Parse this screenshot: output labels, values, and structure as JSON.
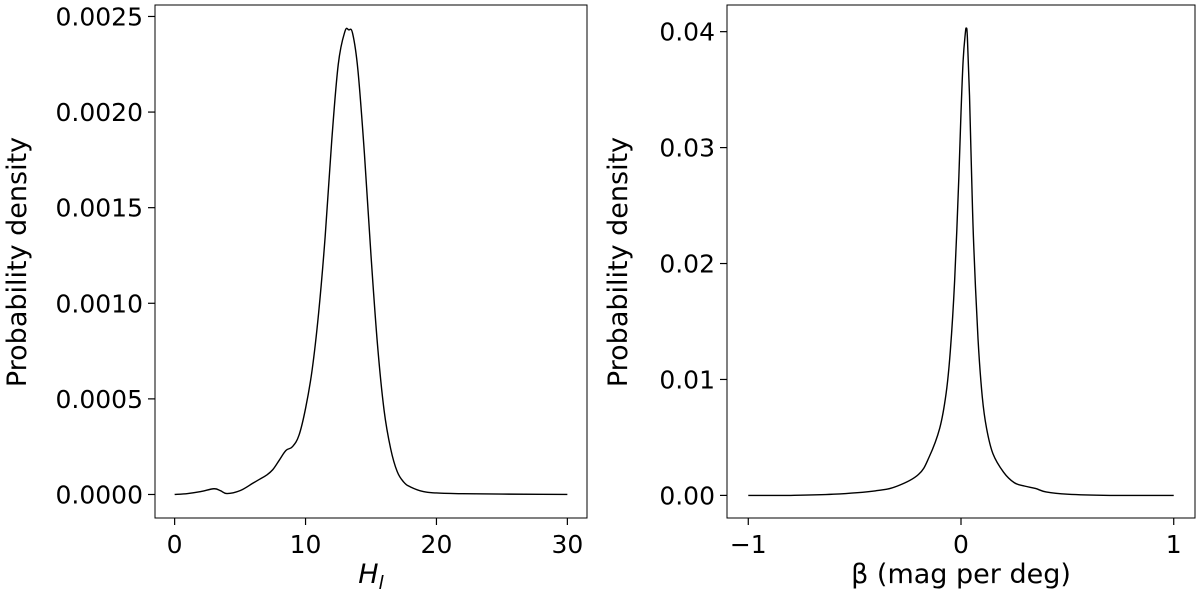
{
  "chart_data": [
    {
      "type": "line",
      "title": "",
      "xlabel": "H",
      "xlabel_subscript": "l",
      "ylabel": "Probability density",
      "xlim": [
        -1.5,
        31.5
      ],
      "ylim": [
        -0.000123,
        0.00256
      ],
      "xticks": [
        0,
        10,
        20,
        30
      ],
      "xtick_labels": [
        "0",
        "10",
        "20",
        "30"
      ],
      "yticks": [
        0.0,
        0.0005,
        0.001,
        0.0015,
        0.002,
        0.0025
      ],
      "ytick_labels": [
        "0.0000",
        "0.0005",
        "0.0010",
        "0.0015",
        "0.0020",
        "0.0025"
      ],
      "grid": false,
      "series": [
        {
          "color": "#000000",
          "x": [
            0,
            1,
            2,
            3,
            3.5,
            4,
            5,
            6,
            6.5,
            7,
            7.5,
            8,
            8.5,
            9,
            9.5,
            10,
            10.5,
            11,
            11.5,
            12,
            12.5,
            13,
            13.3,
            13.6,
            14,
            14.5,
            15,
            15.5,
            16,
            16.5,
            17,
            17.5,
            18,
            19,
            20,
            22,
            25,
            28,
            30
          ],
          "y": [
            0.0,
            5e-06,
            1.5e-05,
            3e-05,
            2e-05,
            5e-06,
            2e-05,
            6e-05,
            8e-05,
            0.0001,
            0.00013,
            0.00018,
            0.00023,
            0.00025,
            0.00031,
            0.00045,
            0.00065,
            0.00095,
            0.00135,
            0.00185,
            0.00225,
            0.00242,
            0.00243,
            0.00241,
            0.00222,
            0.00178,
            0.00125,
            0.00078,
            0.00044,
            0.00024,
            0.00012,
            6.5e-05,
            4e-05,
            1.5e-05,
            8e-06,
            4e-06,
            2e-06,
            1e-06,
            0.0
          ]
        }
      ]
    },
    {
      "type": "line",
      "title": "",
      "xlabel": "β (mag per deg)",
      "ylabel": "Probability density",
      "xlim": [
        -1.1,
        1.1
      ],
      "ylim": [
        -0.00195,
        0.0423
      ],
      "xticks": [
        -1,
        0,
        1
      ],
      "xtick_labels": [
        "−1",
        "0",
        "1"
      ],
      "yticks": [
        0.0,
        0.01,
        0.02,
        0.03,
        0.04
      ],
      "ytick_labels": [
        "0.00",
        "0.01",
        "0.02",
        "0.03",
        "0.04"
      ],
      "grid": false,
      "series": [
        {
          "color": "#000000",
          "x": [
            -1.0,
            -0.8,
            -0.6,
            -0.4,
            -0.3,
            -0.2,
            -0.15,
            -0.1,
            -0.07,
            -0.05,
            -0.03,
            -0.01,
            0.0,
            0.01,
            0.02,
            0.025,
            0.03,
            0.04,
            0.05,
            0.06,
            0.08,
            0.1,
            0.12,
            0.15,
            0.2,
            0.25,
            0.3,
            0.35,
            0.4,
            0.5,
            0.7,
            1.0
          ],
          "y": [
            0.0,
            0.0,
            0.0001,
            0.0004,
            0.0008,
            0.0018,
            0.0033,
            0.0058,
            0.0088,
            0.0125,
            0.0185,
            0.0275,
            0.033,
            0.0375,
            0.0398,
            0.0403,
            0.0395,
            0.0345,
            0.0275,
            0.0215,
            0.0135,
            0.0085,
            0.0058,
            0.0036,
            0.002,
            0.0011,
            0.0008,
            0.0006,
            0.0003,
            0.0001,
            0.0,
            0.0
          ]
        }
      ]
    }
  ]
}
